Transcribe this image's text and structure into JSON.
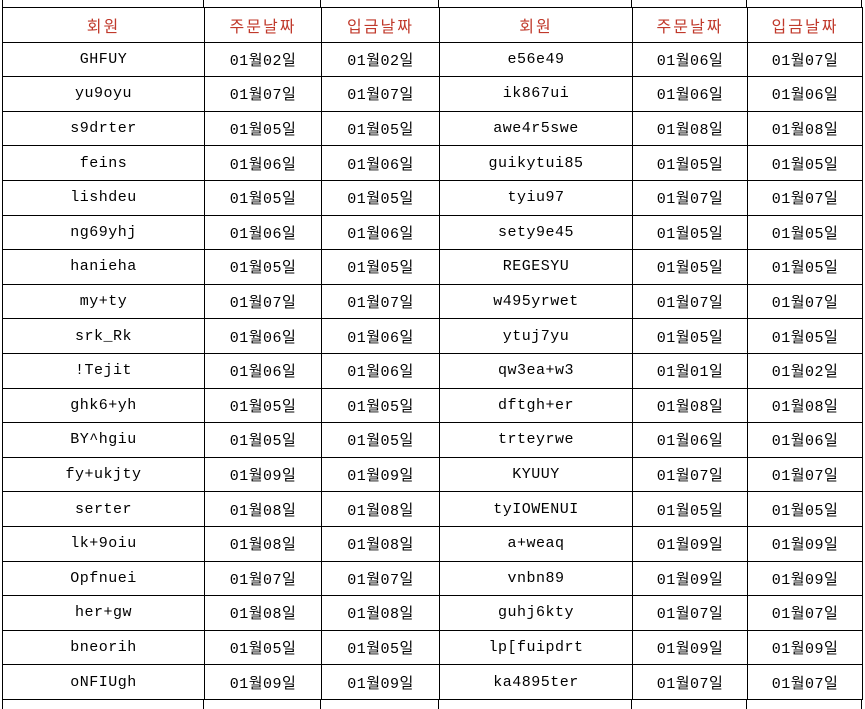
{
  "colors": {
    "background": "#ffffff",
    "grid_line": "#000000",
    "header_text": "#c0392b",
    "body_text": "#000000"
  },
  "table": {
    "column_headers": [
      "회원",
      "주문날짜",
      "입금날짜",
      "회원",
      "주문날짜",
      "입금날짜"
    ],
    "rows": [
      [
        "GHFUY",
        "01월02일",
        "01월02일",
        "e56e49",
        "01월06일",
        "01월07일"
      ],
      [
        "yu9oyu",
        "01월07일",
        "01월07일",
        "ik867ui",
        "01월06일",
        "01월06일"
      ],
      [
        "s9drter",
        "01월05일",
        "01월05일",
        "awe4r5swe",
        "01월08일",
        "01월08일"
      ],
      [
        "feins",
        "01월06일",
        "01월06일",
        "guikytui85",
        "01월05일",
        "01월05일"
      ],
      [
        "lishdeu",
        "01월05일",
        "01월05일",
        "tyiu97",
        "01월07일",
        "01월07일"
      ],
      [
        "ng69yhj",
        "01월06일",
        "01월06일",
        "sety9e45",
        "01월05일",
        "01월05일"
      ],
      [
        "hanieha",
        "01월05일",
        "01월05일",
        "REGESYU",
        "01월05일",
        "01월05일"
      ],
      [
        "my+ty",
        "01월07일",
        "01월07일",
        "w495yrwet",
        "01월07일",
        "01월07일"
      ],
      [
        "srk_Rk",
        "01월06일",
        "01월06일",
        "ytuj7yu",
        "01월05일",
        "01월05일"
      ],
      [
        "!Tejit",
        "01월06일",
        "01월06일",
        "qw3ea+w3",
        "01월01일",
        "01월02일"
      ],
      [
        "ghk6+yh",
        "01월05일",
        "01월05일",
        "dftgh+er",
        "01월08일",
        "01월08일"
      ],
      [
        "BY^hgiu",
        "01월05일",
        "01월05일",
        "trteyrwe",
        "01월06일",
        "01월06일"
      ],
      [
        "fy+ukjty",
        "01월09일",
        "01월09일",
        "KYUUY",
        "01월07일",
        "01월07일"
      ],
      [
        "serter",
        "01월08일",
        "01월08일",
        "tyIOWENUI",
        "01월05일",
        "01월05일"
      ],
      [
        "lk+9oiu",
        "01월08일",
        "01월08일",
        "a+weaq",
        "01월09일",
        "01월09일"
      ],
      [
        "Opfnuei",
        "01월07일",
        "01월07일",
        "vnbn89",
        "01월09일",
        "01월09일"
      ],
      [
        "her+gw",
        "01월08일",
        "01월08일",
        "guhj6kty",
        "01월07일",
        "01월07일"
      ],
      [
        "bneorih",
        "01월05일",
        "01월05일",
        "lp[fuipdrt",
        "01월09일",
        "01월09일"
      ],
      [
        "oNFIUgh",
        "01월09일",
        "01월09일",
        "ka4895ter",
        "01월07일",
        "01월07일"
      ]
    ]
  }
}
